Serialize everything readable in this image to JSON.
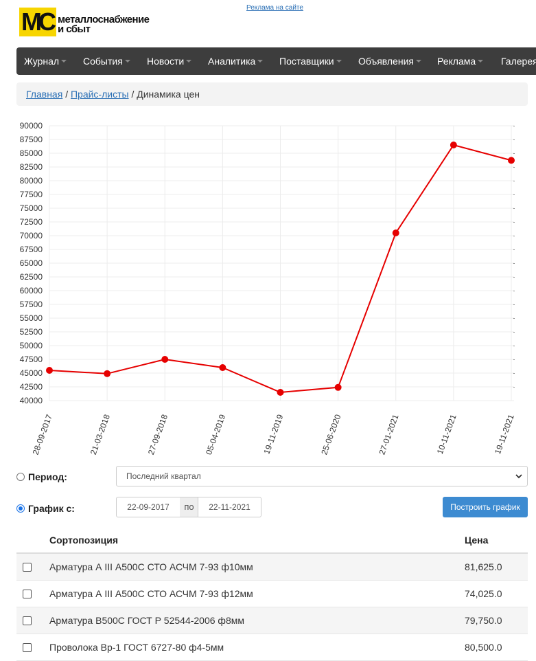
{
  "header": {
    "logo_mark": "MC",
    "logo_line1": "металлоснабжение",
    "logo_line2": "и сбыт",
    "ad_link": "Реклама на сайте"
  },
  "nav": {
    "items": [
      "Журнал",
      "События",
      "Новости",
      "Аналитика",
      "Поставщики",
      "Объявления",
      "Реклама",
      "Галерея"
    ]
  },
  "breadcrumb": {
    "home": "Главная",
    "sep": "/",
    "pricelists": "Прайс-листы",
    "current": "Динамика цен"
  },
  "chart_data": {
    "type": "line",
    "x": [
      "28-09-2017",
      "21-03-2018",
      "27-09-2018",
      "05-04-2019",
      "19-11-2019",
      "25-06-2020",
      "27-01-2021",
      "10-11-2021",
      "19-11-2021"
    ],
    "series": [
      {
        "values": [
          45500,
          44900,
          47500,
          46000,
          41500,
          42400,
          70500,
          86500,
          83700
        ]
      }
    ],
    "ylim": [
      40000,
      90000
    ],
    "yticks": [
      40000,
      42500,
      45000,
      47500,
      50000,
      52500,
      55000,
      57500,
      60000,
      62500,
      65000,
      67500,
      70000,
      72500,
      75000,
      77500,
      80000,
      82500,
      85000,
      87500,
      90000
    ],
    "grid": true,
    "line_color": "#e60000"
  },
  "controls": {
    "period_label": "Период:",
    "period_value": "Последний квартал",
    "graph_label": "График с:",
    "date_from": "22-09-2017",
    "to_label": "по",
    "date_to": "22-11-2021",
    "build_button": "Построить график"
  },
  "table": {
    "col_name": "Сортопозиция",
    "col_price": "Цена",
    "rows": [
      {
        "name": "Арматура А III А500С СТО АСЧМ 7-93 ф10мм",
        "price": "81,625.0"
      },
      {
        "name": "Арматура А III А500С СТО АСЧМ 7-93 ф12мм",
        "price": "74,025.0"
      },
      {
        "name": "Арматура В500С ГОСТ Р 52544-2006 ф8мм",
        "price": "79,750.0"
      },
      {
        "name": "Проволока Вр-1 ГОСТ 6727-80 ф4-5мм",
        "price": "80,500.0"
      }
    ]
  },
  "colors": {
    "nav_bg": "#3d3d3d",
    "accent": "#3d8bd1",
    "logo_yellow": "#f7d500",
    "line": "#e60000"
  }
}
